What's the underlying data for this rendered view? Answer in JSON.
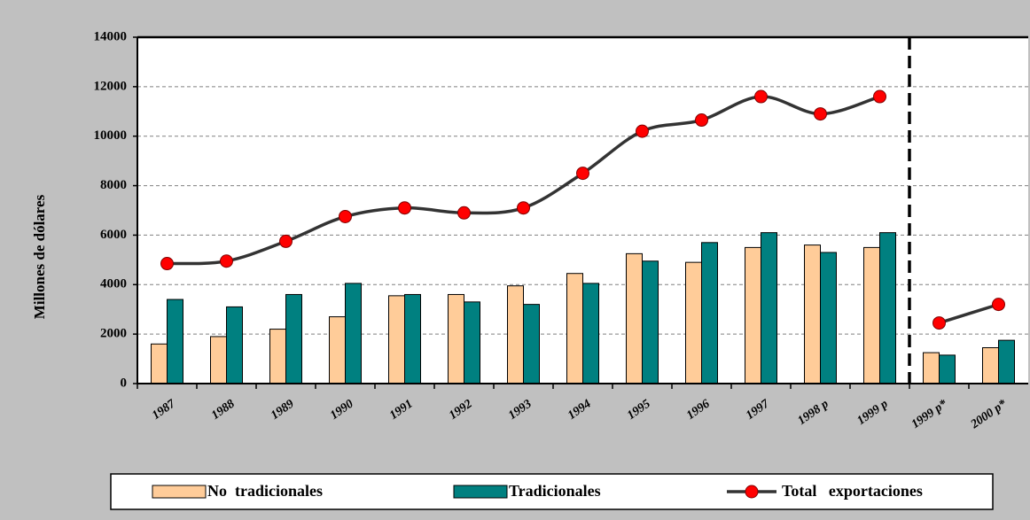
{
  "chart_data": {
    "type": "bar_line",
    "y_label": "Millones de dólares",
    "categories": [
      "1987",
      "1988",
      "1989",
      "1990",
      "1991",
      "1992",
      "1993",
      "1994",
      "1995",
      "1996",
      "1997",
      "1998 p",
      "1999 p",
      "1999 p*",
      "2000 p*"
    ],
    "series": [
      {
        "name": "No  tradicionales",
        "type": "bar",
        "color": "#ffcc99",
        "values": [
          1600,
          1900,
          2200,
          2700,
          3550,
          3600,
          3950,
          4450,
          5250,
          4900,
          5500,
          5600,
          5500,
          1250,
          1450
        ]
      },
      {
        "name": "Tradicionales",
        "type": "bar",
        "color": "#008080",
        "values": [
          3400,
          3100,
          3600,
          4050,
          3600,
          3300,
          3200,
          4050,
          4950,
          5700,
          6100,
          5300,
          6100,
          1150,
          1750
        ]
      },
      {
        "name": "Total   exportaciones",
        "type": "line",
        "color": "#333333",
        "marker_color": "#ff0000",
        "values": [
          4850,
          4950,
          5750,
          6750,
          7100,
          6900,
          7100,
          8500,
          10200,
          10650,
          11600,
          10900,
          11600,
          2450,
          3200
        ]
      }
    ],
    "ylim": [
      0,
      14000
    ],
    "yticks": [
      0,
      2000,
      4000,
      6000,
      8000,
      10000,
      12000,
      14000
    ],
    "grid": true
  }
}
